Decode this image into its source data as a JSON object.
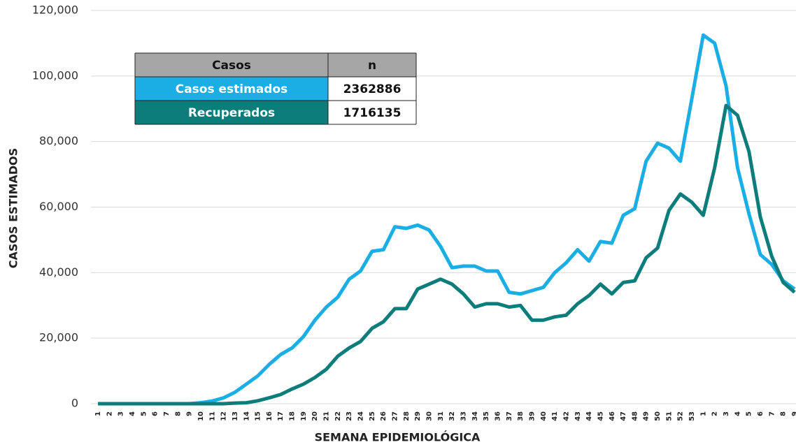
{
  "chart_data": {
    "type": "line",
    "x_label": "SEMANA EPIDEMIOLÓGICA",
    "y_label": "CASOS ESTIMADOS",
    "categories": [
      "1",
      "2",
      "3",
      "4",
      "5",
      "6",
      "7",
      "8",
      "9",
      "10",
      "11",
      "12",
      "13",
      "14",
      "15",
      "16",
      "17",
      "18",
      "19",
      "20",
      "21",
      "22",
      "23",
      "24",
      "25",
      "26",
      "27",
      "28",
      "29",
      "30",
      "31",
      "32",
      "33",
      "34",
      "35",
      "36",
      "37",
      "38",
      "39",
      "40",
      "41",
      "42",
      "43",
      "44",
      "45",
      "46",
      "47",
      "48",
      "49",
      "50",
      "51",
      "52",
      "53",
      "1",
      "2",
      "3",
      "4",
      "5",
      "6",
      "7",
      "8",
      "9"
    ],
    "series": [
      {
        "name": "Casos estimados",
        "color": "#1aaee5",
        "values": [
          0,
          0,
          0,
          0,
          0,
          0,
          0,
          0,
          0,
          300,
          800,
          1800,
          3500,
          6000,
          8500,
          12000,
          15000,
          17000,
          20500,
          25500,
          29500,
          32500,
          38000,
          40500,
          46500,
          47000,
          54000,
          53500,
          54500,
          53000,
          48000,
          41500,
          42000,
          42000,
          40500,
          40500,
          34000,
          33500,
          34500,
          35500,
          40000,
          43000,
          47000,
          43500,
          49500,
          49000,
          57500,
          59500,
          74000,
          79500,
          78000,
          74000,
          93000,
          112500,
          110000,
          97000,
          72000,
          58000,
          45500,
          42500,
          37500,
          35000
        ]
      },
      {
        "name": "Recuperados",
        "color": "#0d7d7b",
        "values": [
          0,
          0,
          0,
          0,
          0,
          0,
          0,
          0,
          0,
          0,
          0,
          0,
          200,
          300,
          900,
          1800,
          2800,
          4500,
          6000,
          8000,
          10500,
          14500,
          17000,
          19000,
          23000,
          25000,
          29000,
          29000,
          35000,
          36500,
          38000,
          36500,
          33500,
          29500,
          30500,
          30500,
          29500,
          30000,
          25500,
          25500,
          26500,
          27000,
          30500,
          33000,
          36500,
          33500,
          37000,
          37500,
          44500,
          47500,
          59000,
          64000,
          61500,
          57500,
          72000,
          91000,
          88000,
          77000,
          57000,
          45000,
          37000,
          34000
        ]
      }
    ],
    "ylim": [
      0,
      120000
    ],
    "yticks": [
      0,
      {
        "value": 20000,
        "label": "20,000"
      },
      {
        "value": 40000,
        "label": "40,000"
      },
      {
        "value": 60000,
        "label": "60,000"
      },
      {
        "value": 80000,
        "label": "80,000"
      },
      {
        "value": 100000,
        "label": "100,000"
      },
      {
        "value": 120000,
        "label": "120,000"
      }
    ],
    "grid": true,
    "table": {
      "headers": [
        "Casos",
        "n"
      ],
      "totals": [
        2362886,
        1716135
      ]
    }
  }
}
